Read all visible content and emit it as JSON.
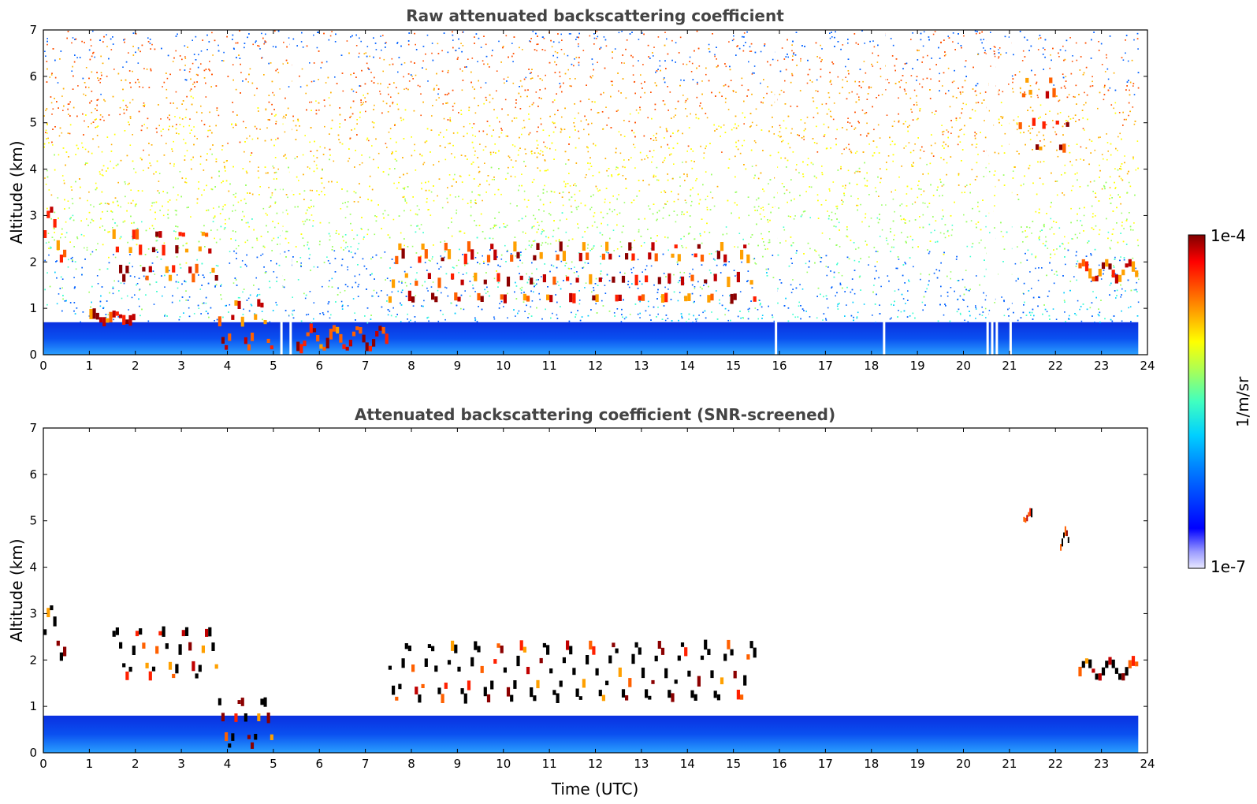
{
  "chart_data": [
    {
      "type": "heatmap",
      "title": "Raw attenuated backscattering coefficient",
      "xlabel": "",
      "ylabel": "Altitude (km)",
      "xlim": [
        0,
        24
      ],
      "ylim": [
        0,
        7
      ],
      "xticks": [
        0,
        1,
        2,
        3,
        4,
        5,
        6,
        7,
        8,
        9,
        10,
        11,
        12,
        13,
        14,
        15,
        16,
        17,
        18,
        19,
        20,
        21,
        22,
        23,
        24
      ],
      "yticks": [
        0,
        1,
        2,
        3,
        4,
        5,
        6,
        7
      ],
      "features": {
        "boundary_layer_top_km": 0.7,
        "noise_region": "above ~1 km, increasing with altitude",
        "strong_layers": [
          {
            "x": [
              0.0,
              0.5
            ],
            "y": [
              2.0,
              3.2
            ]
          },
          {
            "x": [
              1.0,
              2.0
            ],
            "y": [
              0.7,
              0.9
            ]
          },
          {
            "x": [
              1.5,
              3.8
            ],
            "y": [
              1.6,
              2.7
            ]
          },
          {
            "x": [
              3.8,
              5.0
            ],
            "y": [
              0.1,
              1.2
            ]
          },
          {
            "x": [
              5.5,
              7.5
            ],
            "y": [
              0.1,
              0.6
            ]
          },
          {
            "x": [
              7.5,
              15.5
            ],
            "y": [
              1.1,
              2.4
            ]
          },
          {
            "x": [
              21.2,
              22.3
            ],
            "y": [
              4.3,
              6.0
            ]
          },
          {
            "x": [
              22.5,
              23.8
            ],
            "y": [
              1.6,
              2.0
            ]
          }
        ],
        "data_gaps": [
          5.15,
          5.35,
          15.9,
          18.25,
          20.5,
          20.6,
          20.7,
          21.0
        ]
      }
    },
    {
      "type": "heatmap",
      "title": "Attenuated backscattering coefficient (SNR-screened)",
      "xlabel": "Time (UTC)",
      "ylabel": "Altitude (km)",
      "xlim": [
        0,
        24
      ],
      "ylim": [
        0,
        7
      ],
      "xticks": [
        0,
        1,
        2,
        3,
        4,
        5,
        6,
        7,
        8,
        9,
        10,
        11,
        12,
        13,
        14,
        15,
        16,
        17,
        18,
        19,
        20,
        21,
        22,
        23,
        24
      ],
      "yticks": [
        0,
        1,
        2,
        3,
        4,
        5,
        6,
        7
      ],
      "features": {
        "boundary_layer_top_km": 0.8,
        "strong_layers": [
          {
            "x": [
              0.0,
              0.5
            ],
            "y": [
              2.0,
              3.2
            ]
          },
          {
            "x": [
              1.5,
              3.8
            ],
            "y": [
              1.6,
              2.7
            ]
          },
          {
            "x": [
              3.8,
              5.0
            ],
            "y": [
              0.1,
              1.2
            ]
          },
          {
            "x": [
              7.5,
              15.5
            ],
            "y": [
              1.1,
              2.4
            ]
          },
          {
            "x": [
              21.3,
              21.5
            ],
            "y": [
              5.0,
              5.2
            ]
          },
          {
            "x": [
              22.1,
              22.3
            ],
            "y": [
              4.4,
              4.8
            ]
          },
          {
            "x": [
              22.5,
              23.8
            ],
            "y": [
              1.6,
              2.0
            ]
          }
        ]
      }
    }
  ],
  "colorbar": {
    "label": "1/m/sr",
    "max_label": "1e-4",
    "min_label": "1e-7",
    "scale": "log",
    "range": [
      1e-07,
      0.0001
    ],
    "colormap": "jet"
  }
}
